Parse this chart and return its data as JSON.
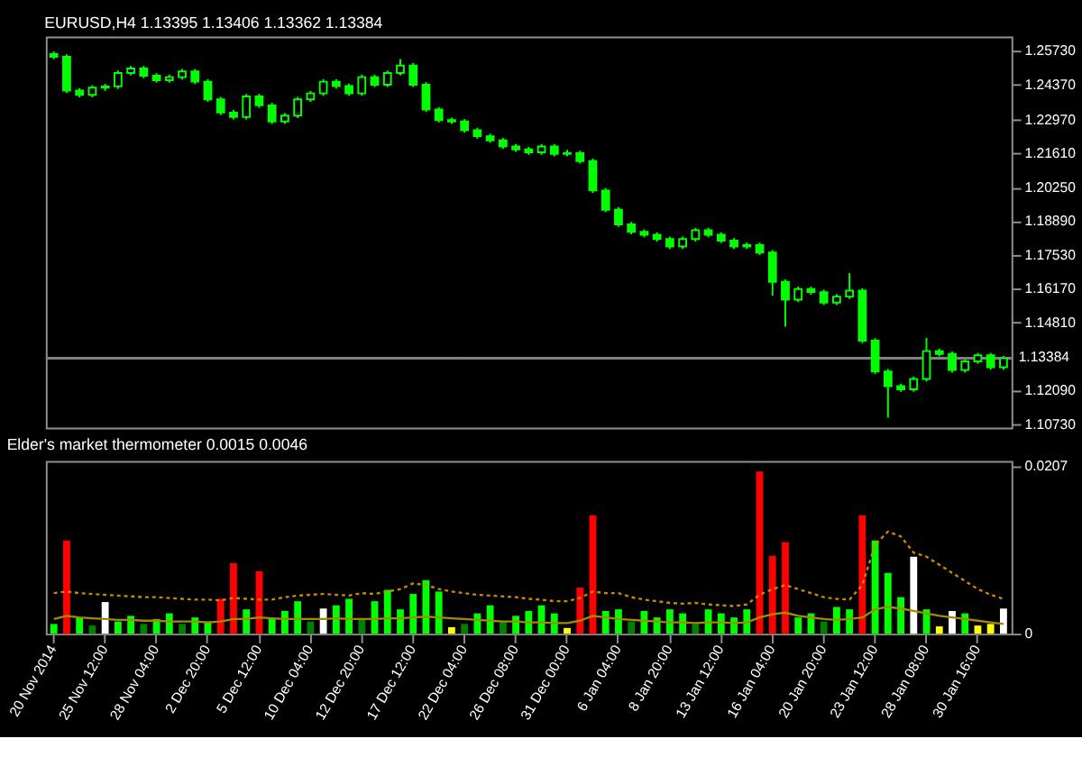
{
  "chart_data": [
    {
      "type": "candlestick",
      "title": "EURUSD,H4 1.13395 1.13406 1.13362 1.13384",
      "color": "#00ff00",
      "categories": [
        null,
        null,
        null,
        null,
        null,
        null,
        null,
        null,
        null,
        null,
        null,
        null,
        null,
        null,
        null,
        null,
        null,
        null,
        null,
        null,
        null,
        null,
        null,
        null,
        null,
        null,
        null,
        null,
        null,
        null,
        null,
        null,
        null,
        null,
        null,
        null,
        null,
        null,
        null,
        null,
        null,
        null,
        null,
        null,
        null,
        null,
        null,
        null,
        null,
        null,
        null,
        null,
        null,
        null,
        null,
        null,
        null,
        null,
        null,
        null,
        null,
        null,
        null,
        null,
        null,
        null,
        null,
        null,
        null,
        null,
        null,
        null,
        null,
        null,
        null
      ],
      "ohlc": [
        [
          1.256,
          1.257,
          1.2539,
          1.2549
        ],
        [
          1.2549,
          1.2559,
          1.2403,
          1.2413
        ],
        [
          1.2413,
          1.2423,
          1.2386,
          1.2396
        ],
        [
          1.2396,
          1.2435,
          1.2386,
          1.2425
        ],
        [
          1.2425,
          1.244,
          1.2412,
          1.243
        ],
        [
          1.243,
          1.2494,
          1.242,
          1.2484
        ],
        [
          1.2484,
          1.2512,
          1.2474,
          1.2502
        ],
        [
          1.2502,
          1.2512,
          1.2463,
          1.2473
        ],
        [
          1.2473,
          1.2483,
          1.2445,
          1.2455
        ],
        [
          1.2455,
          1.2477,
          1.2445,
          1.2467
        ],
        [
          1.2467,
          1.25,
          1.2457,
          1.249
        ],
        [
          1.249,
          1.25,
          1.2439,
          1.2449
        ],
        [
          1.2449,
          1.2459,
          1.2368,
          1.2378
        ],
        [
          1.2378,
          1.2388,
          1.2315,
          1.2325
        ],
        [
          1.2325,
          1.2335,
          1.2297,
          1.2307
        ],
        [
          1.2307,
          1.24,
          1.2297,
          1.239
        ],
        [
          1.239,
          1.24,
          1.2344,
          1.2354
        ],
        [
          1.2354,
          1.2364,
          1.2279,
          1.2289
        ],
        [
          1.2289,
          1.2323,
          1.2279,
          1.2313
        ],
        [
          1.2313,
          1.2388,
          1.2303,
          1.2378
        ],
        [
          1.2378,
          1.2412,
          1.2368,
          1.2402
        ],
        [
          1.2402,
          1.2459,
          1.2392,
          1.2449
        ],
        [
          1.2449,
          1.2459,
          1.2421,
          1.2431
        ],
        [
          1.2431,
          1.2441,
          1.2392,
          1.2402
        ],
        [
          1.2402,
          1.2477,
          1.2392,
          1.2467
        ],
        [
          1.2467,
          1.2477,
          1.2427,
          1.2437
        ],
        [
          1.2437,
          1.2494,
          1.2427,
          1.2484
        ],
        [
          1.2484,
          1.254,
          1.2474,
          1.2514
        ],
        [
          1.2514,
          1.2524,
          1.2427,
          1.2437
        ],
        [
          1.2437,
          1.2447,
          1.2327,
          1.2337
        ],
        [
          1.2337,
          1.2347,
          1.2285,
          1.2295
        ],
        [
          1.2295,
          1.2305,
          1.2279,
          1.2289
        ],
        [
          1.2289,
          1.2299,
          1.2244,
          1.2254
        ],
        [
          1.2254,
          1.2264,
          1.222,
          1.223
        ],
        [
          1.223,
          1.224,
          1.2203,
          1.2213
        ],
        [
          1.2213,
          1.2223,
          1.2179,
          1.2189
        ],
        [
          1.2189,
          1.2199,
          1.2167,
          1.2177
        ],
        [
          1.2177,
          1.2187,
          1.2155,
          1.2165
        ],
        [
          1.2165,
          1.2199,
          1.2155,
          1.2189
        ],
        [
          1.2189,
          1.2199,
          1.2149,
          1.2159
        ],
        [
          1.2159,
          1.2175,
          1.2149,
          1.2162
        ],
        [
          1.2162,
          1.2172,
          1.212,
          1.213
        ],
        [
          1.213,
          1.214,
          1.2002,
          1.2012
        ],
        [
          1.2012,
          1.2022,
          1.1925,
          1.1935
        ],
        [
          1.1935,
          1.1945,
          1.1866,
          1.1876
        ],
        [
          1.1876,
          1.1886,
          1.1836,
          1.1846
        ],
        [
          1.1846,
          1.1856,
          1.1824,
          1.1834
        ],
        [
          1.1834,
          1.1844,
          1.1807,
          1.1817
        ],
        [
          1.1817,
          1.1827,
          1.1777,
          1.1787
        ],
        [
          1.1787,
          1.1827,
          1.1777,
          1.1817
        ],
        [
          1.1817,
          1.1862,
          1.1807,
          1.1852
        ],
        [
          1.1852,
          1.1862,
          1.1824,
          1.1834
        ],
        [
          1.1834,
          1.1844,
          1.1801,
          1.1811
        ],
        [
          1.1811,
          1.1821,
          1.1777,
          1.1787
        ],
        [
          1.1787,
          1.1803,
          1.1777,
          1.1793
        ],
        [
          1.1793,
          1.1803,
          1.1753,
          1.1763
        ],
        [
          1.1763,
          1.1773,
          1.159,
          1.1645
        ],
        [
          1.1645,
          1.1655,
          1.1465,
          1.1574
        ],
        [
          1.1574,
          1.1626,
          1.1564,
          1.1616
        ],
        [
          1.1616,
          1.1626,
          1.1594,
          1.1604
        ],
        [
          1.1604,
          1.1614,
          1.1552,
          1.1562
        ],
        [
          1.1562,
          1.1596,
          1.1552,
          1.1586
        ],
        [
          1.1586,
          1.168,
          1.1576,
          1.161
        ],
        [
          1.161,
          1.162,
          1.1399,
          1.1409
        ],
        [
          1.1409,
          1.1419,
          1.1275,
          1.1285
        ],
        [
          1.1285,
          1.1295,
          1.11,
          1.1226
        ],
        [
          1.1226,
          1.1236,
          1.1204,
          1.1214
        ],
        [
          1.1214,
          1.1265,
          1.1204,
          1.1255
        ],
        [
          1.1255,
          1.142,
          1.1245,
          1.1367
        ],
        [
          1.1367,
          1.1377,
          1.1346,
          1.1356
        ],
        [
          1.1356,
          1.1366,
          1.1281,
          1.1291
        ],
        [
          1.1291,
          1.1336,
          1.1281,
          1.1326
        ],
        [
          1.1326,
          1.136,
          1.1316,
          1.135
        ],
        [
          1.135,
          1.136,
          1.1292,
          1.1302
        ],
        [
          1.1302,
          1.1348,
          1.1292,
          1.1338
        ]
      ],
      "ylim": [
        1.106,
        1.263
      ],
      "yticks": [
        {
          "value": 1.2573,
          "label": "1.25730"
        },
        {
          "value": 1.2437,
          "label": "1.24370"
        },
        {
          "value": 1.2297,
          "label": "1.22970"
        },
        {
          "value": 1.2161,
          "label": "1.21610"
        },
        {
          "value": 1.2025,
          "label": "1.20250"
        },
        {
          "value": 1.1889,
          "label": "1.18890"
        },
        {
          "value": 1.1753,
          "label": "1.17530"
        },
        {
          "value": 1.1617,
          "label": "1.16170"
        },
        {
          "value": 1.1481,
          "label": "1.14810"
        },
        {
          "value": 1.1209,
          "label": "1.12090"
        },
        {
          "value": 1.1073,
          "label": "1.10730"
        }
      ],
      "ref_lines": [
        {
          "axis": "y",
          "value": 1.13384,
          "label": "1.13384",
          "color": "#808080"
        }
      ],
      "tick_labels": "y"
    },
    {
      "type": "bar",
      "title": "Elder's market thermometer 0.0015 0.0046",
      "categories": [
        "20 Nov 2014",
        null,
        null,
        null,
        "25 Nov 12:00",
        null,
        null,
        null,
        "28 Nov 04:00",
        null,
        null,
        null,
        "2 Dec 20:00",
        null,
        null,
        null,
        "5 Dec 12:00",
        null,
        null,
        null,
        "10 Dec 04:00",
        null,
        null,
        null,
        "12 Dec 20:00",
        null,
        null,
        null,
        "17 Dec 12:00",
        null,
        null,
        null,
        "22 Dec 04:00",
        null,
        null,
        null,
        "26 Dec 08:00",
        null,
        null,
        null,
        "31 Dec 00:00",
        null,
        null,
        null,
        "6 Jan 04:00",
        null,
        null,
        null,
        "8 Jan 20:00",
        null,
        null,
        null,
        "13 Jan 12:00",
        null,
        null,
        null,
        "16 Jan 04:00",
        null,
        null,
        null,
        "20 Jan 20:00",
        null,
        null,
        null,
        "23 Jan 12:00",
        null,
        null,
        null,
        "28 Jan 08:00",
        null,
        null,
        null,
        "30 Jan 16:00",
        null,
        null
      ],
      "series": [
        {
          "type": "bar",
          "values": [
            0.0012,
            0.0115,
            0.002,
            0.001,
            0.0039,
            0.0015,
            0.0022,
            0.0012,
            0.0018,
            0.0025,
            0.0012,
            0.002,
            0.0015,
            0.0043,
            0.0087,
            0.003,
            0.0077,
            0.0018,
            0.0028,
            0.004,
            0.0015,
            0.0031,
            0.0035,
            0.0043,
            0.0018,
            0.004,
            0.0054,
            0.003,
            0.0049,
            0.0066,
            0.0052,
            0.0008,
            0.0012,
            0.0025,
            0.0035,
            0.0015,
            0.0022,
            0.0028,
            0.0035,
            0.0025,
            0.0007,
            0.0057,
            0.0146,
            0.0028,
            0.003,
            0.0015,
            0.0028,
            0.002,
            0.003,
            0.0025,
            0.0012,
            0.003,
            0.0025,
            0.002,
            0.003,
            0.02,
            0.0096,
            0.0113,
            0.002,
            0.0025,
            0.0015,
            0.0033,
            0.003,
            0.0146,
            0.0115,
            0.0075,
            0.0045,
            0.0095,
            0.003,
            0.0009,
            0.0028,
            0.0025,
            0.001,
            0.0012,
            0.0031
          ],
          "colors": [
            "#00ff00",
            "#ff0000",
            "#00ff00",
            "#008000",
            "#ffffff",
            "#00ff00",
            "#00ff00",
            "#008000",
            "#00ff00",
            "#00ff00",
            "#008000",
            "#00ff00",
            "#00ff00",
            "#ff0000",
            "#ff0000",
            "#00ff00",
            "#ff0000",
            "#00ff00",
            "#00ff00",
            "#00ff00",
            "#008000",
            "#ffffff",
            "#00ff00",
            "#00ff00",
            "#008000",
            "#00ff00",
            "#00ff00",
            "#00ff00",
            "#00ff00",
            "#00ff00",
            "#00ff00",
            "#ffff00",
            "#008000",
            "#00ff00",
            "#00ff00",
            "#008000",
            "#00ff00",
            "#00ff00",
            "#00ff00",
            "#00ff00",
            "#ffff00",
            "#ff0000",
            "#ff0000",
            "#00ff00",
            "#00ff00",
            "#008000",
            "#00ff00",
            "#00ff00",
            "#00ff00",
            "#00ff00",
            "#008000",
            "#00ff00",
            "#00ff00",
            "#00ff00",
            "#00ff00",
            "#ff0000",
            "#ff0000",
            "#ff0000",
            "#00ff00",
            "#00ff00",
            "#008000",
            "#00ff00",
            "#00ff00",
            "#ff0000",
            "#00ff00",
            "#00ff00",
            "#00ff00",
            "#ffffff",
            "#00ff00",
            "#ffff00",
            "#ffffff",
            "#00ff00",
            "#ffff00",
            "#ffff00",
            "#ffffff"
          ]
        },
        {
          "type": "line",
          "color": "#c88a00",
          "line_style": "dotted",
          "values": [
            0.005,
            0.0052,
            0.005,
            0.0049,
            0.0048,
            0.0047,
            0.0046,
            0.0045,
            0.0045,
            0.0044,
            0.0043,
            0.0042,
            0.0042,
            0.0041,
            0.0044,
            0.0043,
            0.0042,
            0.0042,
            0.0045,
            0.0047,
            0.0048,
            0.0049,
            0.0048,
            0.0047,
            0.005,
            0.0049,
            0.0052,
            0.0055,
            0.0062,
            0.006,
            0.0055,
            0.0052,
            0.005,
            0.0048,
            0.0047,
            0.0046,
            0.0045,
            0.0043,
            0.0042,
            0.004,
            0.004,
            0.0044,
            0.0052,
            0.005,
            0.005,
            0.0045,
            0.0042,
            0.004,
            0.0038,
            0.0037,
            0.0038,
            0.0036,
            0.0035,
            0.0034,
            0.0036,
            0.0048,
            0.0055,
            0.006,
            0.0055,
            0.005,
            0.0045,
            0.0043,
            0.0042,
            0.006,
            0.011,
            0.0126,
            0.012,
            0.01,
            0.0095,
            0.0085,
            0.0075,
            0.0065,
            0.0055,
            0.0048,
            0.0043
          ]
        },
        {
          "type": "line",
          "color": "#a08c00",
          "line_style": "solid",
          "values": [
            0.0018,
            0.0022,
            0.002,
            0.0019,
            0.0018,
            0.0017,
            0.0017,
            0.0016,
            0.0016,
            0.0015,
            0.0015,
            0.0015,
            0.0014,
            0.0015,
            0.0018,
            0.0018,
            0.002,
            0.0019,
            0.0018,
            0.0018,
            0.0018,
            0.0018,
            0.0019,
            0.0018,
            0.0018,
            0.0018,
            0.0019,
            0.0019,
            0.002,
            0.0021,
            0.002,
            0.0019,
            0.0018,
            0.0017,
            0.0016,
            0.0015,
            0.0015,
            0.0014,
            0.0014,
            0.0013,
            0.0013,
            0.0016,
            0.0022,
            0.002,
            0.0018,
            0.0017,
            0.0016,
            0.0015,
            0.0014,
            0.0014,
            0.0013,
            0.0014,
            0.0014,
            0.0013,
            0.0014,
            0.002,
            0.0024,
            0.0026,
            0.0022,
            0.002,
            0.0018,
            0.0017,
            0.0018,
            0.002,
            0.003,
            0.0033,
            0.0031,
            0.0028,
            0.0025,
            0.0022,
            0.002,
            0.0018,
            0.0016,
            0.0014,
            0.0012
          ]
        }
      ],
      "ylim": [
        0,
        0.0213
      ],
      "yticks": [
        0,
        0.0207
      ]
    }
  ]
}
